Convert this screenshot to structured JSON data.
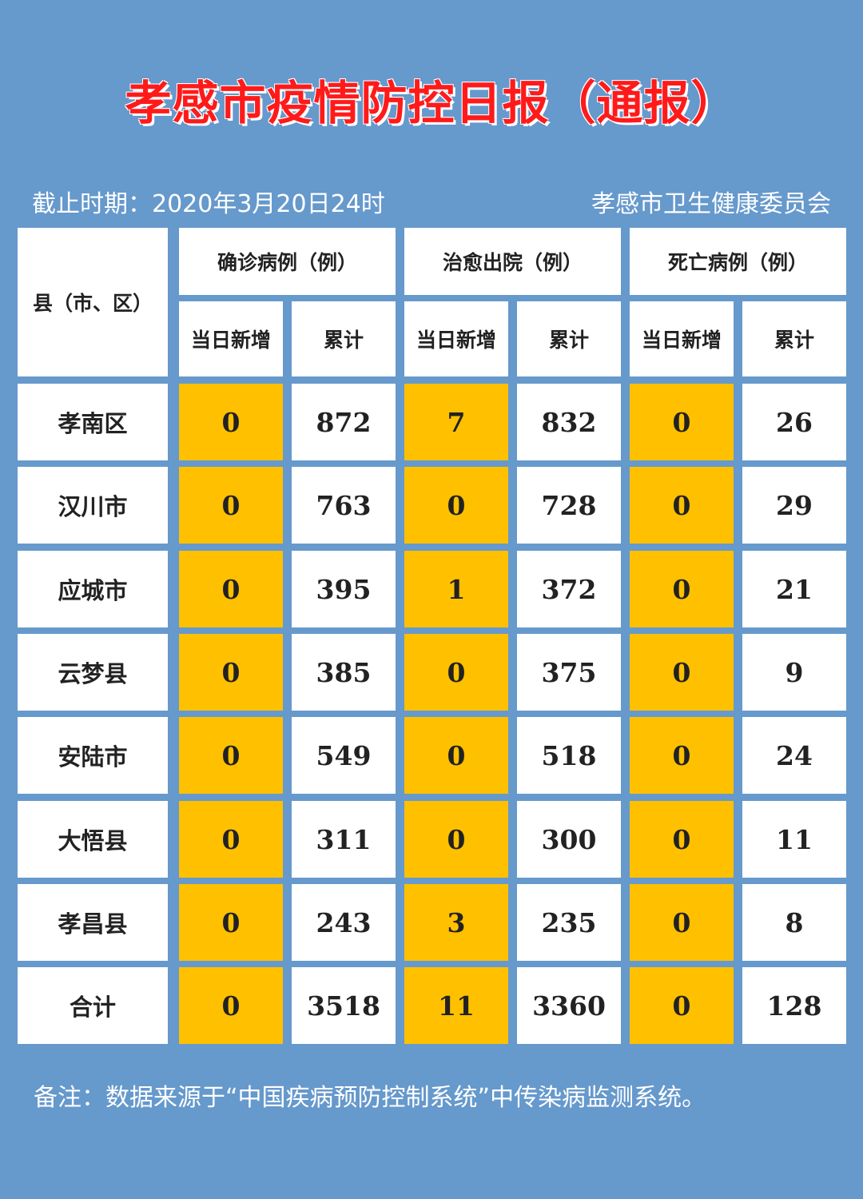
{
  "title": "孝感市疫情防控日报（通报）",
  "meta": {
    "cutoff": "截止时期：2020年3月20日24时",
    "issuer": "孝感市卫生健康委员会"
  },
  "table": {
    "region_header": "县（市、区）",
    "groups": [
      "确诊病例（例）",
      "治愈出院（例）",
      "死亡病例（例）"
    ],
    "sub_headers": [
      "当日新增",
      "累计",
      "当日新增",
      "累计",
      "当日新增",
      "累计"
    ],
    "rows": [
      {
        "region": "孝南区",
        "values": [
          "0",
          "872",
          "7",
          "832",
          "0",
          "26"
        ]
      },
      {
        "region": "汉川市",
        "values": [
          "0",
          "763",
          "0",
          "728",
          "0",
          "29"
        ]
      },
      {
        "region": "应城市",
        "values": [
          "0",
          "395",
          "1",
          "372",
          "0",
          "21"
        ]
      },
      {
        "region": "云梦县",
        "values": [
          "0",
          "385",
          "0",
          "375",
          "0",
          "9"
        ]
      },
      {
        "region": "安陆市",
        "values": [
          "0",
          "549",
          "0",
          "518",
          "0",
          "24"
        ]
      },
      {
        "region": "大悟县",
        "values": [
          "0",
          "311",
          "0",
          "300",
          "0",
          "11"
        ]
      },
      {
        "region": "孝昌县",
        "values": [
          "0",
          "243",
          "3",
          "235",
          "0",
          "8"
        ]
      },
      {
        "region": "合计",
        "values": [
          "0",
          "3518",
          "11",
          "3360",
          "0",
          "128"
        ]
      }
    ]
  },
  "note": "备注：数据来源于“中国疾病预防控制系统”中传染病监测系统。",
  "colors": {
    "background": "#6699cc",
    "title": "#ff1a1a",
    "highlight": "#ffc000",
    "cell": "#ffffff"
  }
}
